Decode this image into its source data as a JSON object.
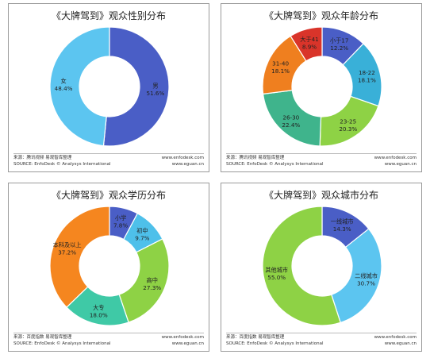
{
  "chart_data": [
    {
      "type": "pie",
      "title": "《大牌驾到》观众性别分布",
      "categories": [
        "男",
        "女"
      ],
      "values": [
        51.6,
        48.4
      ],
      "value_labels": [
        "51.6%",
        "48.4%"
      ],
      "colors": [
        "#4a5ec6",
        "#5cc5f0"
      ],
      "source_left": [
        "来源：腾讯视频 易观智库整理",
        "SOURCE: EnfoDesk © Analysys International"
      ],
      "source_right": [
        "www.enfodesk.com",
        "www.eguan.cn"
      ]
    },
    {
      "type": "pie",
      "title": "《大牌驾到》观众年龄分布",
      "categories": [
        "小于17",
        "18-22",
        "23-25",
        "26-30",
        "31-40",
        "大于41"
      ],
      "values": [
        12.2,
        18.1,
        20.3,
        22.4,
        18.1,
        8.9
      ],
      "value_labels": [
        "12.2%",
        "18.1%",
        "20.3%",
        "22.4%",
        "18.1%",
        "8.9%"
      ],
      "colors": [
        "#4a5ec6",
        "#39b0d8",
        "#8ed245",
        "#3fb48c",
        "#ef7f1f",
        "#d9342a"
      ],
      "source_left": [
        "来源：腾讯视频 易观智库整理",
        "SOURCE: EnfoDesk © Analysys International"
      ],
      "source_right": [
        "www.enfodesk.com",
        "www.eguan.cn"
      ]
    },
    {
      "type": "pie",
      "title": "《大牌驾到》观众学历分布",
      "categories": [
        "小学",
        "初中",
        "高中",
        "大专",
        "本科及以上"
      ],
      "values": [
        7.8,
        9.7,
        27.3,
        18.0,
        37.2
      ],
      "value_labels": [
        "7.8%",
        "9.7%",
        "27.3%",
        "18.0%",
        "37.2%"
      ],
      "colors": [
        "#4a5ec6",
        "#4ec0ea",
        "#8ed245",
        "#3fc9a6",
        "#f5861f"
      ],
      "source_left": [
        "来源：百度指数 易观智库整理",
        "SOURCE: EnfoDesk © Analysys International"
      ],
      "source_right": [
        "www.enfodesk.com",
        "www.eguan.cn"
      ]
    },
    {
      "type": "pie",
      "title": "《大牌驾到》观众城市分布",
      "categories": [
        "一线城市",
        "二线城市",
        "其他城市"
      ],
      "values": [
        14.3,
        30.7,
        55.0
      ],
      "value_labels": [
        "14.3%",
        "30.7%",
        "55.0%"
      ],
      "colors": [
        "#4a5ec6",
        "#5cc5f0",
        "#8ed245"
      ],
      "source_left": [
        "来源：百度指数 易观智库整理",
        "SOURCE: EnfoDesk © Analysys International"
      ],
      "source_right": [
        "www.enfodesk.com",
        "www.eguan.cn"
      ]
    }
  ]
}
